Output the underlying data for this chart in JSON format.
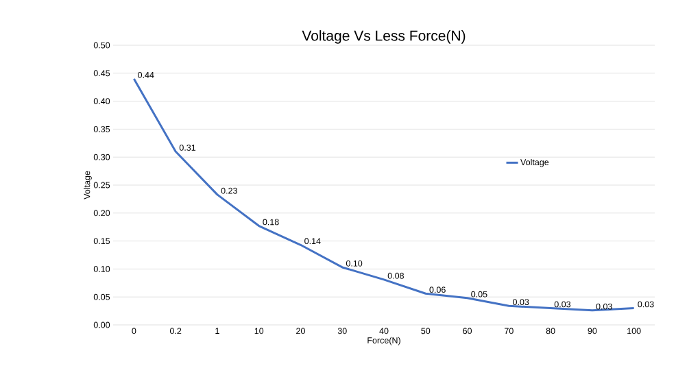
{
  "chart_data": {
    "type": "line",
    "title": "Voltage Vs  Less Force(N)",
    "xlabel": "Force(N)",
    "ylabel": "Voltage",
    "categories": [
      "0",
      "0.2",
      "1",
      "10",
      "20",
      "30",
      "40",
      "50",
      "60",
      "70",
      "80",
      "90",
      "100"
    ],
    "series": [
      {
        "name": "Voltage",
        "color": "#4472c4",
        "values": [
          0.44,
          0.31,
          0.233,
          0.177,
          0.143,
          0.103,
          0.081,
          0.056,
          0.048,
          0.034,
          0.03,
          0.026,
          0.03
        ],
        "value_labels": [
          "0.44",
          "0.31",
          "0.23",
          "0.18",
          "0.14",
          "0.10",
          "0.08",
          "0.06",
          "0.05",
          "0.03",
          "0.03",
          "0.03",
          "0.03"
        ]
      }
    ],
    "ylim": [
      0,
      0.5
    ],
    "yticks": [
      {
        "value": 0,
        "label": "0.00"
      },
      {
        "value": 0.05,
        "label": "0.05"
      },
      {
        "value": 0.1,
        "label": "0.10"
      },
      {
        "value": 0.15,
        "label": "0.15"
      },
      {
        "value": 0.2,
        "label": "0.20"
      },
      {
        "value": 0.25,
        "label": "0.25"
      },
      {
        "value": 0.3,
        "label": "0.30"
      },
      {
        "value": 0.35,
        "label": "0.35"
      },
      {
        "value": 0.4,
        "label": "0.40"
      },
      {
        "value": 0.45,
        "label": "0.45"
      },
      {
        "value": 0.5,
        "label": "0.50"
      }
    ],
    "grid": "y",
    "legend": "right"
  }
}
